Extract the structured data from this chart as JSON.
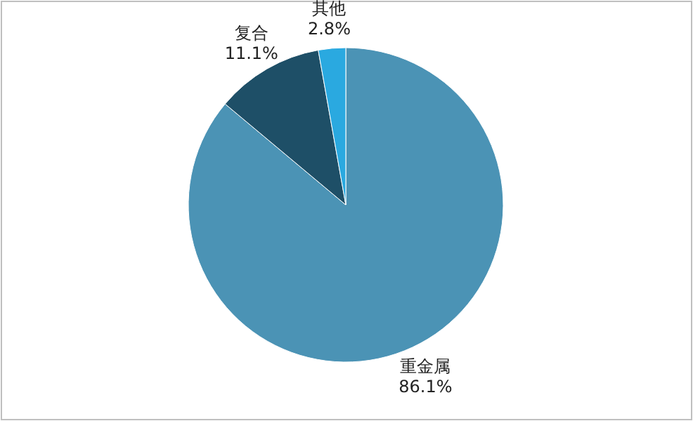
{
  "chart_data": {
    "type": "pie",
    "categories": [
      "重金属",
      "复合",
      "其他"
    ],
    "values": [
      86.1,
      11.1,
      2.8
    ],
    "colors": [
      "#4b93b5",
      "#1e4f67",
      "#2aa9e0"
    ],
    "value_labels": [
      "86.1%",
      "11.1%",
      "2.8%"
    ]
  }
}
